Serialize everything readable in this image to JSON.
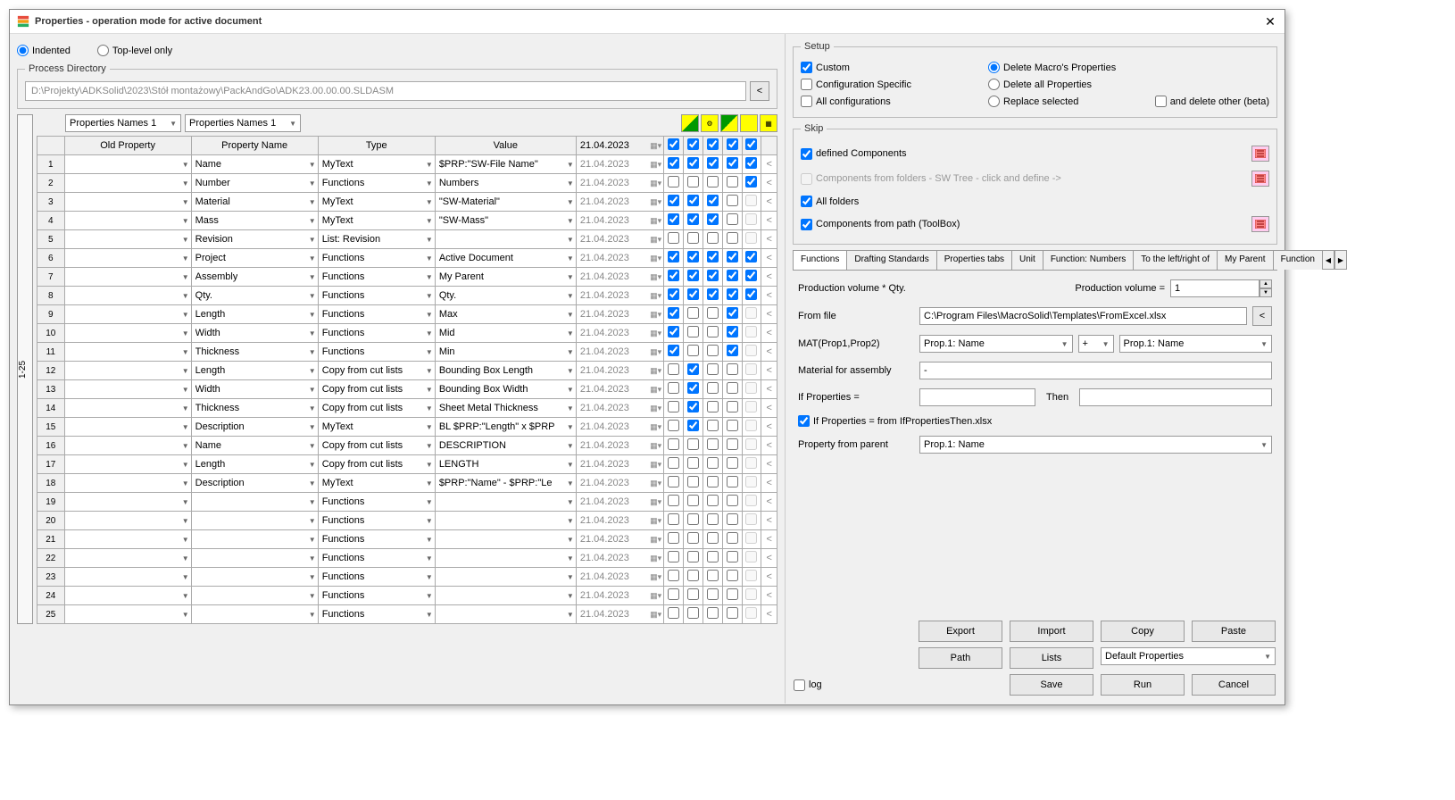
{
  "window": {
    "title": "Properties - operation mode for active document"
  },
  "viewMode": {
    "indented": "Indented",
    "topLevel": "Top-level only"
  },
  "processDirectory": {
    "legend": "Process Directory",
    "path": "D:\\Projekty\\ADKSolid\\2023\\Stół montażowy\\PackAndGo\\ADK23.00.00.00.SLDASM",
    "browseBtn": "<"
  },
  "sideTab": "1-25",
  "topCombos": {
    "combo1": "Properties Names 1",
    "combo2": "Properties Names 1"
  },
  "headers": {
    "old": "Old Property",
    "name": "Property Name",
    "type": "Type",
    "value": "Value",
    "date": "21.04.2023"
  },
  "rows": [
    {
      "n": 1,
      "old": "",
      "prop": "Name",
      "type": "MyText",
      "val": "$PRP:\"SW-File Name\"",
      "date": "21.04.2023",
      "c": [
        true,
        true,
        true,
        true,
        true
      ]
    },
    {
      "n": 2,
      "old": "",
      "prop": "Number",
      "type": "Functions",
      "val": "Numbers",
      "date": "21.04.2023",
      "c": [
        false,
        false,
        false,
        false,
        true
      ]
    },
    {
      "n": 3,
      "old": "",
      "prop": "Material",
      "type": "MyText",
      "val": "\"SW-Material\"",
      "date": "21.04.2023",
      "c": [
        true,
        true,
        true,
        false,
        false
      ]
    },
    {
      "n": 4,
      "old": "",
      "prop": "Mass",
      "type": "MyText",
      "val": "\"SW-Mass\"",
      "date": "21.04.2023",
      "c": [
        true,
        true,
        true,
        false,
        false
      ]
    },
    {
      "n": 5,
      "old": "",
      "prop": "Revision",
      "type": "List: Revision",
      "val": "",
      "date": "21.04.2023",
      "c": [
        false,
        false,
        false,
        false,
        false
      ]
    },
    {
      "n": 6,
      "old": "",
      "prop": "Project",
      "type": "Functions",
      "val": "Active Document",
      "date": "21.04.2023",
      "c": [
        true,
        true,
        true,
        true,
        true
      ]
    },
    {
      "n": 7,
      "old": "",
      "prop": "Assembly",
      "type": "Functions",
      "val": "My Parent",
      "date": "21.04.2023",
      "c": [
        true,
        true,
        true,
        true,
        true
      ]
    },
    {
      "n": 8,
      "old": "",
      "prop": "Qty.",
      "type": "Functions",
      "val": "Qty.",
      "date": "21.04.2023",
      "c": [
        true,
        true,
        true,
        true,
        true
      ]
    },
    {
      "n": 9,
      "old": "",
      "prop": "Length",
      "type": "Functions",
      "val": "Max",
      "date": "21.04.2023",
      "c": [
        true,
        false,
        false,
        true,
        false
      ]
    },
    {
      "n": 10,
      "old": "",
      "prop": "Width",
      "type": "Functions",
      "val": "Mid",
      "date": "21.04.2023",
      "c": [
        true,
        false,
        false,
        true,
        false
      ]
    },
    {
      "n": 11,
      "old": "",
      "prop": "Thickness",
      "type": "Functions",
      "val": "Min",
      "date": "21.04.2023",
      "c": [
        true,
        false,
        false,
        true,
        false
      ]
    },
    {
      "n": 12,
      "old": "",
      "prop": "Length",
      "type": "Copy from cut lists",
      "val": "Bounding Box Length",
      "date": "21.04.2023",
      "c": [
        false,
        true,
        false,
        false,
        false
      ]
    },
    {
      "n": 13,
      "old": "",
      "prop": "Width",
      "type": "Copy from cut lists",
      "val": "Bounding Box Width",
      "date": "21.04.2023",
      "c": [
        false,
        true,
        false,
        false,
        false
      ]
    },
    {
      "n": 14,
      "old": "",
      "prop": "Thickness",
      "type": "Copy from cut lists",
      "val": "Sheet Metal Thickness",
      "date": "21.04.2023",
      "c": [
        false,
        true,
        false,
        false,
        false
      ]
    },
    {
      "n": 15,
      "old": "",
      "prop": "Description",
      "type": "MyText",
      "val": "BL $PRP:\"Length\" x $PRP",
      "date": "21.04.2023",
      "c": [
        false,
        true,
        false,
        false,
        false
      ]
    },
    {
      "n": 16,
      "old": "",
      "prop": "Name",
      "type": "Copy from cut lists",
      "val": "DESCRIPTION",
      "date": "21.04.2023",
      "c": [
        false,
        false,
        false,
        false,
        false
      ]
    },
    {
      "n": 17,
      "old": "",
      "prop": "Length",
      "type": "Copy from cut lists",
      "val": "LENGTH",
      "date": "21.04.2023",
      "c": [
        false,
        false,
        false,
        false,
        false
      ]
    },
    {
      "n": 18,
      "old": "",
      "prop": "Description",
      "type": "MyText",
      "val": "$PRP:\"Name\" - $PRP:\"Le",
      "date": "21.04.2023",
      "c": [
        false,
        false,
        false,
        false,
        false
      ]
    },
    {
      "n": 19,
      "old": "",
      "prop": "",
      "type": "Functions",
      "val": "",
      "date": "21.04.2023",
      "c": [
        false,
        false,
        false,
        false,
        false
      ]
    },
    {
      "n": 20,
      "old": "",
      "prop": "",
      "type": "Functions",
      "val": "",
      "date": "21.04.2023",
      "c": [
        false,
        false,
        false,
        false,
        false
      ]
    },
    {
      "n": 21,
      "old": "",
      "prop": "",
      "type": "Functions",
      "val": "",
      "date": "21.04.2023",
      "c": [
        false,
        false,
        false,
        false,
        false
      ]
    },
    {
      "n": 22,
      "old": "",
      "prop": "",
      "type": "Functions",
      "val": "",
      "date": "21.04.2023",
      "c": [
        false,
        false,
        false,
        false,
        false
      ]
    },
    {
      "n": 23,
      "old": "",
      "prop": "",
      "type": "Functions",
      "val": "",
      "date": "21.04.2023",
      "c": [
        false,
        false,
        false,
        false,
        false
      ]
    },
    {
      "n": 24,
      "old": "",
      "prop": "",
      "type": "Functions",
      "val": "",
      "date": "21.04.2023",
      "c": [
        false,
        false,
        false,
        false,
        false
      ]
    },
    {
      "n": 25,
      "old": "",
      "prop": "",
      "type": "Functions",
      "val": "",
      "date": "21.04.2023",
      "c": [
        false,
        false,
        false,
        false,
        false
      ]
    }
  ],
  "setup": {
    "legend": "Setup",
    "custom": "Custom",
    "configSpecific": "Configuration Specific",
    "allConfigs": "All configurations",
    "deleteMacro": "Delete Macro's Properties",
    "deleteAll": "Delete all Properties",
    "replaceSelected": "Replace selected",
    "andDeleteOther": "and delete other (beta)"
  },
  "skip": {
    "legend": "Skip",
    "definedComponents": "defined Components",
    "componentsFromFolders": "Components from folders - SW Tree - click and define ->",
    "allFolders": "All folders",
    "componentsFromPath": "Components from path (ToolBox)"
  },
  "tabs": [
    "Functions",
    "Drafting Standards",
    "Properties tabs",
    "Unit",
    "Function: Numbers",
    "To the left/right of",
    "My Parent",
    "Function"
  ],
  "functionsTab": {
    "prodVolLabel": "Production volume * Qty.",
    "prodVolEq": "Production volume =",
    "prodVolVal": "1",
    "fromFile": "From file",
    "fromFilePath": "C:\\Program Files\\MacroSolid\\Templates\\FromExcel.xlsx",
    "mat": "MAT(Prop1,Prop2)",
    "matProp1": "Prop.1: Name",
    "matOp": "+",
    "matProp2": "Prop.1: Name",
    "matForAssembly": "Material for assembly",
    "matForAssemblyVal": "-",
    "ifProps": "If Properties =",
    "then": "Then",
    "ifPropsFrom": "If Properties = from IfPropertiesThen.xlsx",
    "propFromParent": "Property from parent",
    "propFromParentVal": "Prop.1: Name"
  },
  "buttons": {
    "export": "Export",
    "import": "Import",
    "copy": "Copy",
    "paste": "Paste",
    "path": "Path",
    "lists": "Lists",
    "defaultProps": "Default Properties",
    "save": "Save",
    "run": "Run",
    "cancel": "Cancel"
  },
  "log": "log"
}
